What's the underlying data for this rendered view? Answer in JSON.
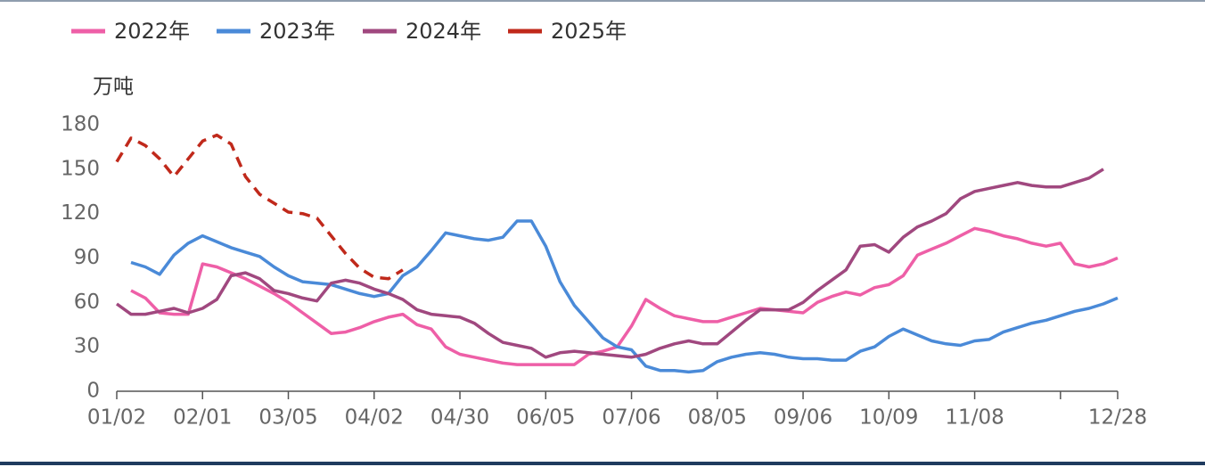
{
  "chart_data": {
    "type": "line",
    "y_label": "万吨",
    "categories": [
      "01/02",
      null,
      null,
      null,
      null,
      null,
      "02/01",
      null,
      null,
      null,
      null,
      null,
      "03/05",
      null,
      null,
      null,
      null,
      null,
      "04/02",
      null,
      null,
      null,
      null,
      null,
      "04/30",
      null,
      null,
      null,
      null,
      null,
      "06/05",
      null,
      null,
      null,
      null,
      null,
      "07/06",
      null,
      null,
      null,
      null,
      null,
      "08/05",
      null,
      null,
      null,
      null,
      null,
      "09/06",
      null,
      null,
      null,
      null,
      null,
      "10/09",
      null,
      null,
      null,
      null,
      null,
      "11/08",
      null,
      null,
      null,
      null,
      null,
      null,
      null,
      null,
      null,
      "12/28"
    ],
    "ylim": [
      0,
      180
    ],
    "yticks": [
      0,
      30,
      60,
      90,
      120,
      150,
      180
    ],
    "legend": "top-left",
    "series": [
      {
        "name": "2022年",
        "color": "#ee5fa7",
        "style": "solid",
        "values": [
          null,
          68,
          63,
          53,
          52,
          52,
          86,
          84,
          80,
          76,
          71,
          66,
          60,
          53,
          46,
          39,
          40,
          43,
          47,
          50,
          52,
          45,
          42,
          30,
          25,
          23,
          21,
          19,
          18,
          18,
          18,
          18,
          18,
          25,
          27,
          30,
          44,
          62,
          56,
          51,
          49,
          47,
          47,
          50,
          53,
          56,
          55,
          54,
          53,
          60,
          64,
          67,
          65,
          70,
          72,
          78,
          92,
          96,
          100,
          105,
          110,
          108,
          105,
          103,
          100,
          98,
          100,
          86,
          84,
          86,
          90
        ]
      },
      {
        "name": "2023年",
        "color": "#4a8ad8",
        "style": "solid",
        "values": [
          null,
          87,
          84,
          79,
          92,
          100,
          105,
          101,
          97,
          94,
          91,
          84,
          78,
          74,
          73,
          72,
          69,
          66,
          64,
          66,
          78,
          84,
          95,
          107,
          105,
          103,
          102,
          104,
          115,
          115,
          98,
          74,
          58,
          47,
          36,
          30,
          28,
          17,
          14,
          14,
          13,
          14,
          20,
          23,
          25,
          26,
          25,
          23,
          22,
          22,
          21,
          21,
          27,
          30,
          37,
          42,
          38,
          34,
          32,
          31,
          34,
          35,
          40,
          43,
          46,
          48,
          51,
          54,
          56,
          59,
          63
        ]
      },
      {
        "name": "2024年",
        "color": "#a0487f",
        "style": "solid",
        "values": [
          59,
          52,
          52,
          54,
          56,
          53,
          56,
          62,
          78,
          80,
          76,
          68,
          66,
          63,
          61,
          73,
          75,
          73,
          69,
          66,
          62,
          55,
          52,
          51,
          50,
          46,
          39,
          33,
          31,
          29,
          23,
          26,
          27,
          26,
          25,
          24,
          23,
          25,
          29,
          32,
          34,
          32,
          32,
          40,
          48,
          55,
          55,
          55,
          60,
          68,
          75,
          82,
          98,
          99,
          94,
          104,
          111,
          115,
          120,
          130,
          135,
          137,
          139,
          141,
          139,
          138,
          138,
          141,
          144,
          150,
          null
        ]
      },
      {
        "name": "2025年",
        "color": "#c0291b",
        "style": "dashed",
        "values": [
          155,
          171,
          166,
          157,
          145,
          157,
          169,
          173,
          167,
          145,
          133,
          127,
          121,
          120,
          117,
          105,
          93,
          83,
          77,
          76,
          82,
          null,
          null,
          null,
          null,
          null,
          null,
          null,
          null,
          null,
          null,
          null,
          null,
          null,
          null,
          null,
          null,
          null,
          null,
          null,
          null,
          null,
          null,
          null,
          null,
          null,
          null,
          null,
          null,
          null,
          null,
          null,
          null,
          null,
          null,
          null,
          null,
          null,
          null,
          null,
          null,
          null,
          null,
          null,
          null,
          null,
          null,
          null,
          null,
          null,
          null
        ]
      }
    ]
  }
}
